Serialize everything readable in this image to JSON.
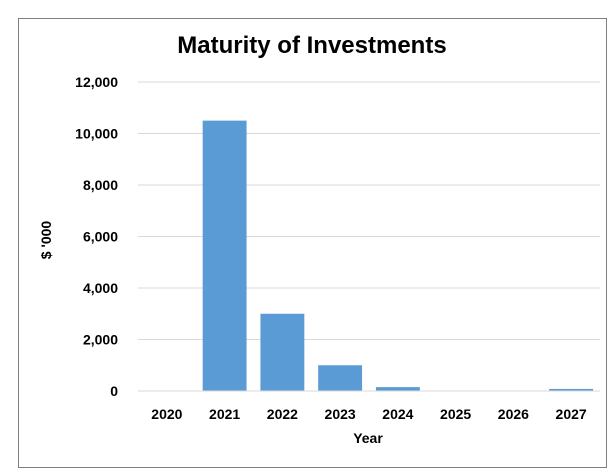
{
  "chart_data": {
    "type": "bar",
    "title": "Maturity of Investments",
    "xlabel": "Year",
    "ylabel": "$ '000",
    "categories": [
      "2020",
      "2021",
      "2022",
      "2023",
      "2024",
      "2025",
      "2026",
      "2027"
    ],
    "values": [
      0,
      10500,
      3000,
      1000,
      150,
      0,
      0,
      80
    ],
    "ylim": [
      0,
      12000
    ],
    "yticks": [
      0,
      2000,
      4000,
      6000,
      8000,
      10000,
      12000
    ],
    "ytick_labels": [
      "0",
      "2,000",
      "4,000",
      "6,000",
      "8,000",
      "10,000",
      "12,000"
    ],
    "grid": true,
    "legend": "none",
    "bar_color": "#5b9bd5"
  }
}
